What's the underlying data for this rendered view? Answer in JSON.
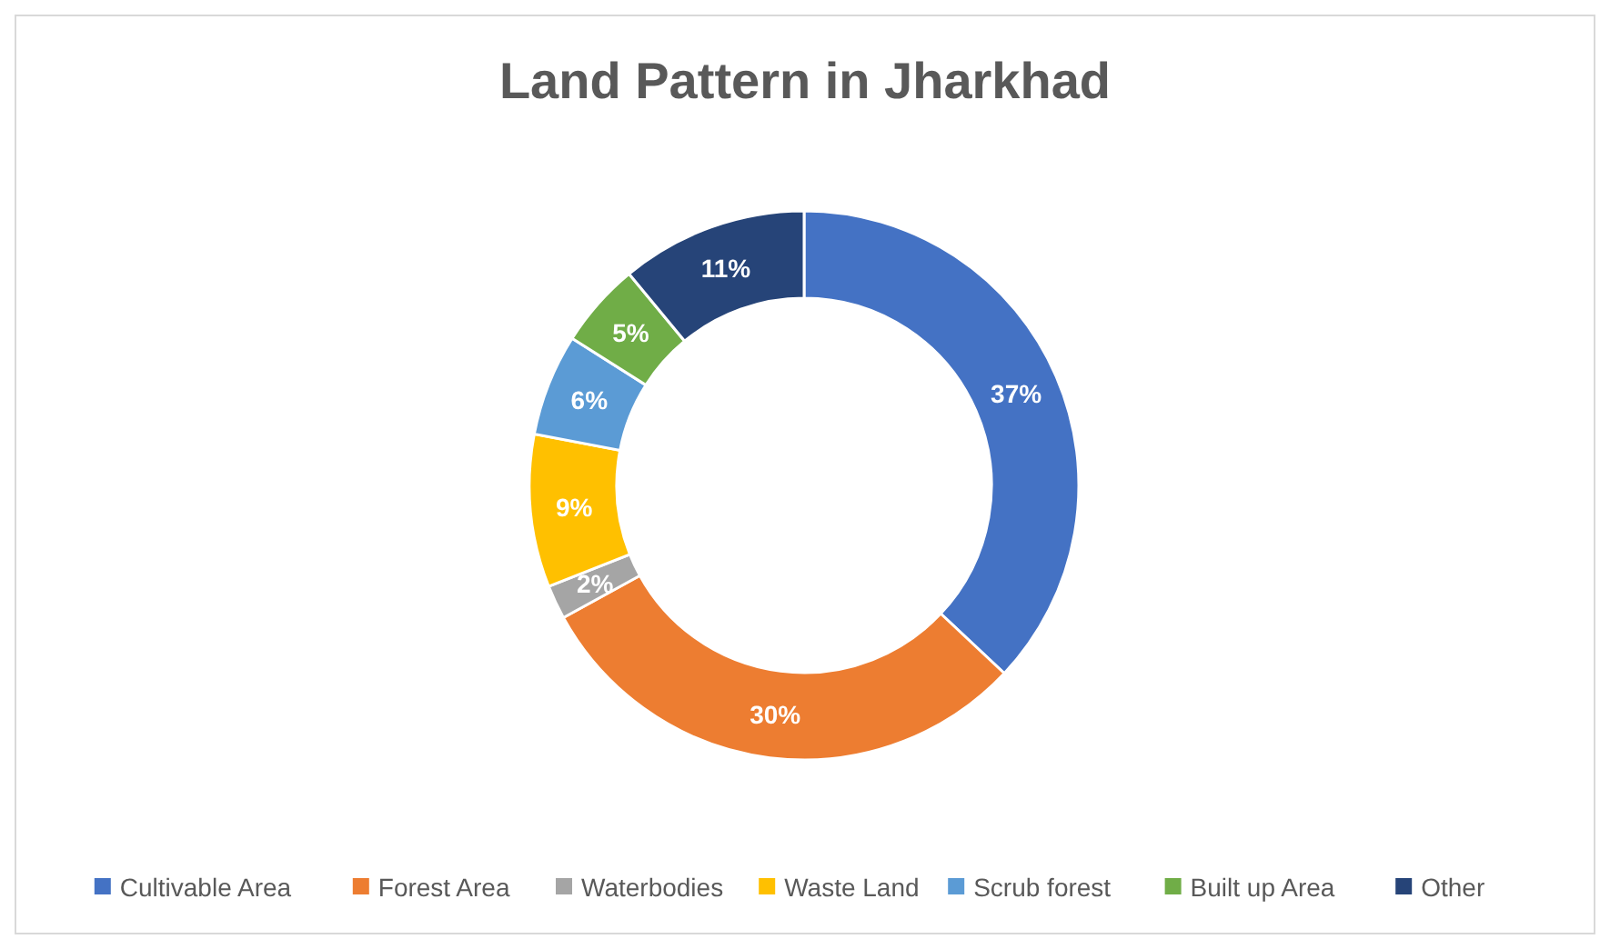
{
  "chart_data": {
    "type": "donut",
    "title": "Land Pattern in Jharkhad",
    "categories": [
      "Cultivable Area",
      "Forest Area",
      "Waterbodies",
      "Waste Land",
      "Scrub forest",
      "Built up Area",
      "Other"
    ],
    "values": [
      37,
      30,
      2,
      9,
      6,
      5,
      11
    ],
    "colors": [
      "#4472c4",
      "#ed7d31",
      "#a5a5a5",
      "#ffc000",
      "#5b9bd5",
      "#70ad47",
      "#264478"
    ],
    "value_labels": [
      "37%",
      "30%",
      "2%",
      "9%",
      "6%",
      "5%",
      "11%"
    ],
    "legend": "bottom"
  }
}
